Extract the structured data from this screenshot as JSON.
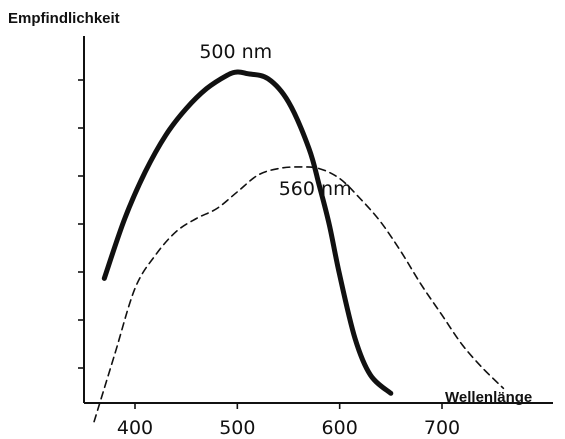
{
  "chart_data": {
    "type": "line",
    "ylabel": "Empfindlichkeit",
    "xlabel": "Wellenlänge",
    "xticks": [
      400,
      500,
      600,
      700
    ],
    "xlim": [
      355,
      770
    ],
    "ylim": [
      0,
      1
    ],
    "grid": false,
    "series": [
      {
        "style": "solid",
        "x": [
          370,
          390,
          410,
          430,
          450,
          470,
          490,
          500,
          510,
          530,
          550,
          570,
          580,
          590,
          600,
          615,
          630,
          650
        ],
        "y": [
          0.35,
          0.53,
          0.67,
          0.78,
          0.86,
          0.92,
          0.96,
          0.97,
          0.965,
          0.95,
          0.88,
          0.74,
          0.63,
          0.51,
          0.36,
          0.17,
          0.06,
          0.005
        ]
      },
      {
        "style": "dashed",
        "x": [
          360,
          380,
          400,
          420,
          440,
          460,
          480,
          500,
          520,
          540,
          560,
          580,
          600,
          620,
          640,
          660,
          680,
          700,
          720,
          740,
          760
        ],
        "y": [
          -0.08,
          0.12,
          0.32,
          0.42,
          0.49,
          0.53,
          0.56,
          0.61,
          0.66,
          0.68,
          0.685,
          0.68,
          0.65,
          0.59,
          0.52,
          0.43,
          0.33,
          0.24,
          0.15,
          0.08,
          0.02
        ]
      }
    ],
    "annotations": [
      {
        "text": "500 nm",
        "x": 500,
        "y": 0.97
      },
      {
        "text": "560 nm",
        "x": 560,
        "y": 0.685
      }
    ]
  }
}
